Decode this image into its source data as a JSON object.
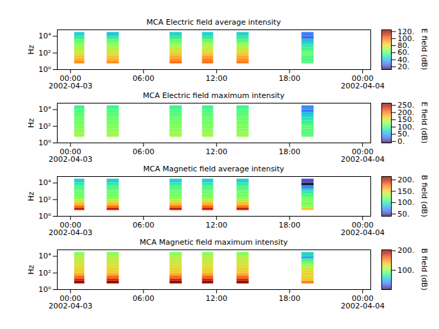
{
  "chart_data": [
    {
      "type": "heatmap",
      "title": "MCA  Electric field average intensity",
      "ylabel": "Hz",
      "log": "y",
      "xlim": [
        "2002-04-02T22:55Z",
        "2002-04-04T00:40Z"
      ],
      "xticks": [
        {
          "value": "2002-04-03T00:00Z",
          "label": "00:00\n2002-04-03"
        },
        {
          "value": "2002-04-03T06:00Z",
          "label": "06:00"
        },
        {
          "value": "2002-04-03T12:00Z",
          "label": "12:00"
        },
        {
          "value": "2002-04-03T18:00Z",
          "label": "18:00"
        },
        {
          "value": "2002-04-04T00:00Z",
          "label": "00:00\n2002-04-04"
        }
      ],
      "ylim": [
        1,
        60000
      ],
      "yticks": [
        {
          "value": 1,
          "label": "10⁰"
        },
        {
          "value": 100,
          "label": "10²"
        },
        {
          "value": 10000,
          "label": "10⁴"
        }
      ],
      "time_bins": [
        [
          "2002-04-03T00:20Z",
          "2002-04-03T01:10Z"
        ],
        [
          "2002-04-03T03:00Z",
          "2002-04-03T04:00Z"
        ],
        [
          "2002-04-03T08:10Z",
          "2002-04-03T09:10Z"
        ],
        [
          "2002-04-03T10:50Z",
          "2002-04-03T11:45Z"
        ],
        [
          "2002-04-03T13:40Z",
          "2002-04-03T14:40Z"
        ],
        [
          "2002-04-03T19:00Z",
          "2002-04-03T20:00Z"
        ]
      ],
      "frequency_edges": [
        5,
        10,
        20,
        50,
        100,
        200,
        500,
        1000,
        2000,
        5000,
        10000,
        30000
      ],
      "values": [
        [
          95,
          90,
          85,
          80,
          75,
          70,
          68,
          65,
          60,
          50,
          45
        ],
        [
          95,
          90,
          85,
          80,
          78,
          72,
          68,
          65,
          60,
          50,
          42
        ],
        [
          100,
          95,
          90,
          85,
          80,
          75,
          70,
          65,
          60,
          50,
          45
        ],
        [
          100,
          98,
          92,
          85,
          80,
          75,
          72,
          68,
          60,
          50,
          45
        ],
        [
          98,
          95,
          90,
          85,
          80,
          75,
          70,
          65,
          58,
          50,
          45
        ],
        [
          60,
          55,
          58,
          62,
          60,
          55,
          50,
          45,
          40,
          25,
          30
        ]
      ],
      "colorbar": {
        "label": "E field (dB)",
        "range": [
          12,
          125
        ],
        "ticks": [
          {
            "value": 20,
            "label": "20."
          },
          {
            "value": 40,
            "label": "40."
          },
          {
            "value": 60,
            "label": "60."
          },
          {
            "value": 80,
            "label": "80."
          },
          {
            "value": 100,
            "label": "100."
          },
          {
            "value": 120,
            "label": "120."
          }
        ]
      }
    },
    {
      "type": "heatmap",
      "title": "MCA  Electric field maximum intensity",
      "ylabel": "Hz",
      "log": "y",
      "xlim": [
        "2002-04-02T22:55Z",
        "2002-04-04T00:40Z"
      ],
      "xticks": [
        {
          "value": "2002-04-03T00:00Z",
          "label": "00:00\n2002-04-03"
        },
        {
          "value": "2002-04-03T06:00Z",
          "label": "06:00"
        },
        {
          "value": "2002-04-03T12:00Z",
          "label": "12:00"
        },
        {
          "value": "2002-04-03T18:00Z",
          "label": "18:00"
        },
        {
          "value": "2002-04-04T00:00Z",
          "label": "00:00\n2002-04-04"
        }
      ],
      "ylim": [
        1,
        60000
      ],
      "yticks": [
        {
          "value": 1,
          "label": "10⁰"
        },
        {
          "value": 100,
          "label": "10²"
        },
        {
          "value": 10000,
          "label": "10⁴"
        }
      ],
      "time_bins": [
        [
          "2002-04-03T00:20Z",
          "2002-04-03T01:10Z"
        ],
        [
          "2002-04-03T03:00Z",
          "2002-04-03T04:00Z"
        ],
        [
          "2002-04-03T08:10Z",
          "2002-04-03T09:10Z"
        ],
        [
          "2002-04-03T10:50Z",
          "2002-04-03T11:45Z"
        ],
        [
          "2002-04-03T13:40Z",
          "2002-04-03T14:40Z"
        ],
        [
          "2002-04-03T19:00Z",
          "2002-04-03T20:00Z"
        ]
      ],
      "frequency_edges": [
        5,
        10,
        20,
        50,
        100,
        200,
        500,
        1000,
        2000,
        5000,
        10000,
        30000
      ],
      "values": [
        [
          130,
          128,
          125,
          120,
          118,
          115,
          112,
          110,
          105,
          100,
          95
        ],
        [
          130,
          128,
          125,
          120,
          118,
          115,
          112,
          110,
          105,
          100,
          95
        ],
        [
          132,
          128,
          125,
          122,
          118,
          115,
          112,
          110,
          105,
          100,
          95
        ],
        [
          130,
          128,
          125,
          120,
          118,
          115,
          112,
          110,
          105,
          100,
          95
        ],
        [
          130,
          127,
          124,
          120,
          118,
          115,
          112,
          110,
          105,
          100,
          95
        ],
        [
          110,
          100,
          105,
          110,
          100,
          90,
          80,
          70,
          60,
          30,
          40
        ]
      ],
      "colorbar": {
        "label": "E field (dB)",
        "range": [
          -10,
          265
        ],
        "ticks": [
          {
            "value": 0,
            "label": "0."
          },
          {
            "value": 50,
            "label": "50."
          },
          {
            "value": 100,
            "label": "100."
          },
          {
            "value": 150,
            "label": "150."
          },
          {
            "value": 200,
            "label": "200."
          },
          {
            "value": 250,
            "label": "250."
          }
        ]
      }
    },
    {
      "type": "heatmap",
      "title": "MCA  Magnetic field average intensity",
      "ylabel": "Hz",
      "log": "y",
      "xlim": [
        "2002-04-02T22:55Z",
        "2002-04-04T00:40Z"
      ],
      "xticks": [
        {
          "value": "2002-04-03T00:00Z",
          "label": "00:00\n2002-04-03"
        },
        {
          "value": "2002-04-03T06:00Z",
          "label": "06:00"
        },
        {
          "value": "2002-04-03T12:00Z",
          "label": "12:00"
        },
        {
          "value": "2002-04-03T18:00Z",
          "label": "18:00"
        },
        {
          "value": "2002-04-04T00:00Z",
          "label": "00:00\n2002-04-04"
        }
      ],
      "ylim": [
        1,
        60000
      ],
      "yticks": [
        {
          "value": 1,
          "label": "10⁰"
        },
        {
          "value": 100,
          "label": "10²"
        },
        {
          "value": 10000,
          "label": "10⁴"
        }
      ],
      "time_bins": [
        [
          "2002-04-03T00:20Z",
          "2002-04-03T01:10Z"
        ],
        [
          "2002-04-03T03:00Z",
          "2002-04-03T04:00Z"
        ],
        [
          "2002-04-03T08:10Z",
          "2002-04-03T09:10Z"
        ],
        [
          "2002-04-03T10:50Z",
          "2002-04-03T11:45Z"
        ],
        [
          "2002-04-03T13:40Z",
          "2002-04-03T14:40Z"
        ],
        [
          "2002-04-03T19:00Z",
          "2002-04-03T20:00Z"
        ]
      ],
      "frequency_edges": [
        5,
        10,
        20,
        50,
        100,
        200,
        500,
        1000,
        2000,
        5000,
        10000,
        30000
      ],
      "values": [
        [
          195,
          175,
          155,
          135,
          125,
          120,
          118,
          115,
          110,
          100,
          90
        ],
        [
          195,
          175,
          155,
          135,
          125,
          120,
          118,
          115,
          110,
          100,
          90
        ],
        [
          195,
          175,
          155,
          135,
          125,
          120,
          118,
          115,
          110,
          100,
          90
        ],
        [
          195,
          178,
          158,
          137,
          126,
          120,
          118,
          115,
          110,
          100,
          90
        ],
        [
          195,
          175,
          155,
          135,
          125,
          120,
          118,
          115,
          110,
          100,
          90
        ],
        [
          150,
          130,
          120,
          125,
          120,
          110,
          100,
          90,
          70,
          40,
          55
        ]
      ],
      "colorbar": {
        "label": "B field (dB)",
        "range": [
          40,
          215
        ],
        "ticks": [
          {
            "value": 50,
            "label": "50."
          },
          {
            "value": 100,
            "label": "100."
          },
          {
            "value": 150,
            "label": "150."
          },
          {
            "value": 200,
            "label": "200."
          }
        ]
      }
    },
    {
      "type": "heatmap",
      "title": "MCA  Magnetic field maximum intensity",
      "ylabel": "Hz",
      "log": "y",
      "xlim": [
        "2002-04-02T22:55Z",
        "2002-04-04T00:40Z"
      ],
      "xticks": [
        {
          "value": "2002-04-03T00:00Z",
          "label": "00:00\n2002-04-03"
        },
        {
          "value": "2002-04-03T06:00Z",
          "label": "06:00"
        },
        {
          "value": "2002-04-03T12:00Z",
          "label": "12:00"
        },
        {
          "value": "2002-04-03T18:00Z",
          "label": "18:00"
        },
        {
          "value": "2002-04-04T00:00Z",
          "label": "00:00\n2002-04-04"
        }
      ],
      "ylim": [
        1,
        60000
      ],
      "yticks": [
        {
          "value": 1,
          "label": "10⁰"
        },
        {
          "value": 100,
          "label": "10²"
        },
        {
          "value": 10000,
          "label": "10⁴"
        }
      ],
      "time_bins": [
        [
          "2002-04-03T00:20Z",
          "2002-04-03T01:10Z"
        ],
        [
          "2002-04-03T03:00Z",
          "2002-04-03T04:00Z"
        ],
        [
          "2002-04-03T08:10Z",
          "2002-04-03T09:10Z"
        ],
        [
          "2002-04-03T10:50Z",
          "2002-04-03T11:45Z"
        ],
        [
          "2002-04-03T13:40Z",
          "2002-04-03T14:40Z"
        ],
        [
          "2002-04-03T19:00Z",
          "2002-04-03T20:00Z"
        ]
      ],
      "frequency_edges": [
        5,
        10,
        20,
        50,
        100,
        200,
        500,
        1000,
        2000,
        5000,
        10000,
        30000
      ],
      "values": [
        [
          200,
          180,
          160,
          140,
          130,
          125,
          122,
          120,
          115,
          110,
          100
        ],
        [
          200,
          180,
          160,
          140,
          130,
          125,
          122,
          120,
          115,
          110,
          100
        ],
        [
          200,
          180,
          160,
          140,
          130,
          125,
          122,
          120,
          115,
          110,
          100
        ],
        [
          200,
          182,
          162,
          142,
          131,
          125,
          122,
          120,
          115,
          110,
          100
        ],
        [
          200,
          180,
          160,
          140,
          130,
          125,
          122,
          120,
          115,
          110,
          100
        ],
        [
          155,
          135,
          125,
          130,
          125,
          115,
          105,
          95,
          80,
          45,
          60
        ]
      ],
      "colorbar": {
        "label": "B field (dB)",
        "range": [
          0,
          205
        ],
        "ticks": [
          {
            "value": 100,
            "label": "100."
          },
          {
            "value": 200,
            "label": "200."
          }
        ]
      }
    }
  ]
}
